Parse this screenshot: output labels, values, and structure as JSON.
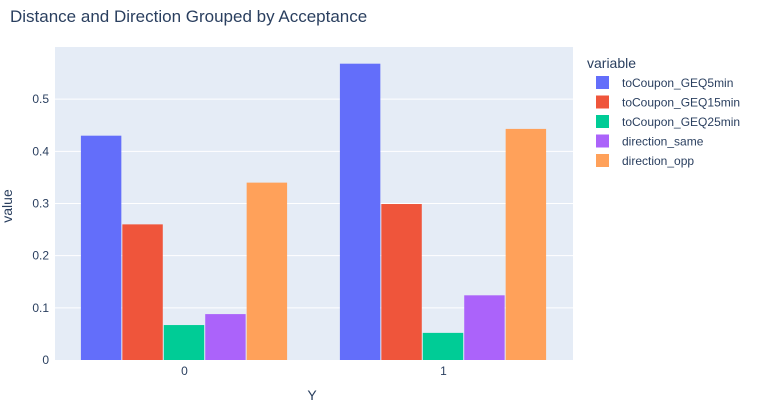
{
  "chart_data": {
    "type": "bar",
    "title": "Distance and Direction Grouped by Acceptance",
    "xlabel": "Y",
    "ylabel": "value",
    "categories": [
      "0",
      "1"
    ],
    "ylim": [
      0,
      0.6
    ],
    "yticks": [
      "0",
      "0.1",
      "0.2",
      "0.3",
      "0.4",
      "0.5"
    ],
    "grid": true,
    "legend": {
      "title": "variable",
      "placement": "right"
    },
    "series": [
      {
        "name": "toCoupon_GEQ5min",
        "color": "#636efa",
        "values": [
          0.43,
          0.568
        ]
      },
      {
        "name": "toCoupon_GEQ15min",
        "color": "#ef553b",
        "values": [
          0.26,
          0.299
        ]
      },
      {
        "name": "toCoupon_GEQ25min",
        "color": "#00cc96",
        "values": [
          0.067,
          0.052
        ]
      },
      {
        "name": "direction_same",
        "color": "#ab63fa",
        "values": [
          0.088,
          0.124
        ]
      },
      {
        "name": "direction_opp",
        "color": "#ffa15a",
        "values": [
          0.34,
          0.443
        ]
      }
    ],
    "plot_background": "#e5ecf6",
    "gridline_color": "#ffffff"
  }
}
